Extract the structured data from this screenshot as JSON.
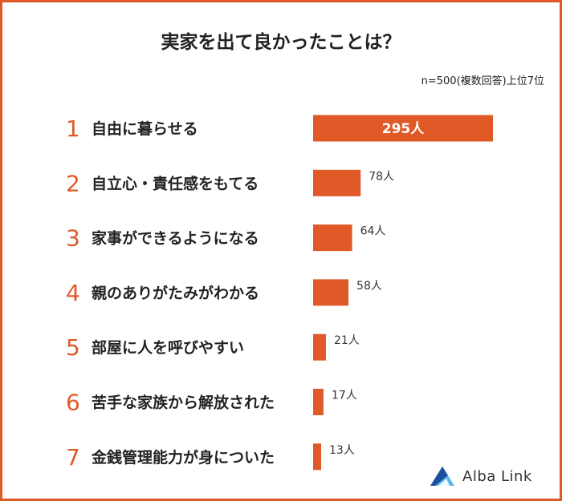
{
  "title": "実家を出て良かったことは？",
  "note": "n=500(複数回答)上位7位",
  "brand": {
    "logo_text": "Alba Link",
    "logo_icon": "alba-link-triangle-icon",
    "colors": [
      "#1e4f9c",
      "#5bb8e6"
    ]
  },
  "colors": {
    "accent": "#e05a28",
    "text": "#222222",
    "border": "#e05a28"
  },
  "chart_data": {
    "type": "bar",
    "orientation": "horizontal",
    "ranks": [
      "1",
      "2",
      "3",
      "4",
      "5",
      "6",
      "7"
    ],
    "categories": [
      "自由に暮らせる",
      "自立心・責任感をもてる",
      "家事ができるようになる",
      "親のありがたみがわかる",
      "部屋に人を呼びやすい",
      "苦手な家族から解放された",
      "金銭管理能力が身についた"
    ],
    "values": [
      295,
      78,
      64,
      58,
      21,
      17,
      13
    ],
    "value_labels": [
      "295人",
      "78人",
      "64人",
      "58人",
      "21人",
      "17人",
      "13人"
    ],
    "unit": "人",
    "grid": false,
    "legend": "none"
  }
}
